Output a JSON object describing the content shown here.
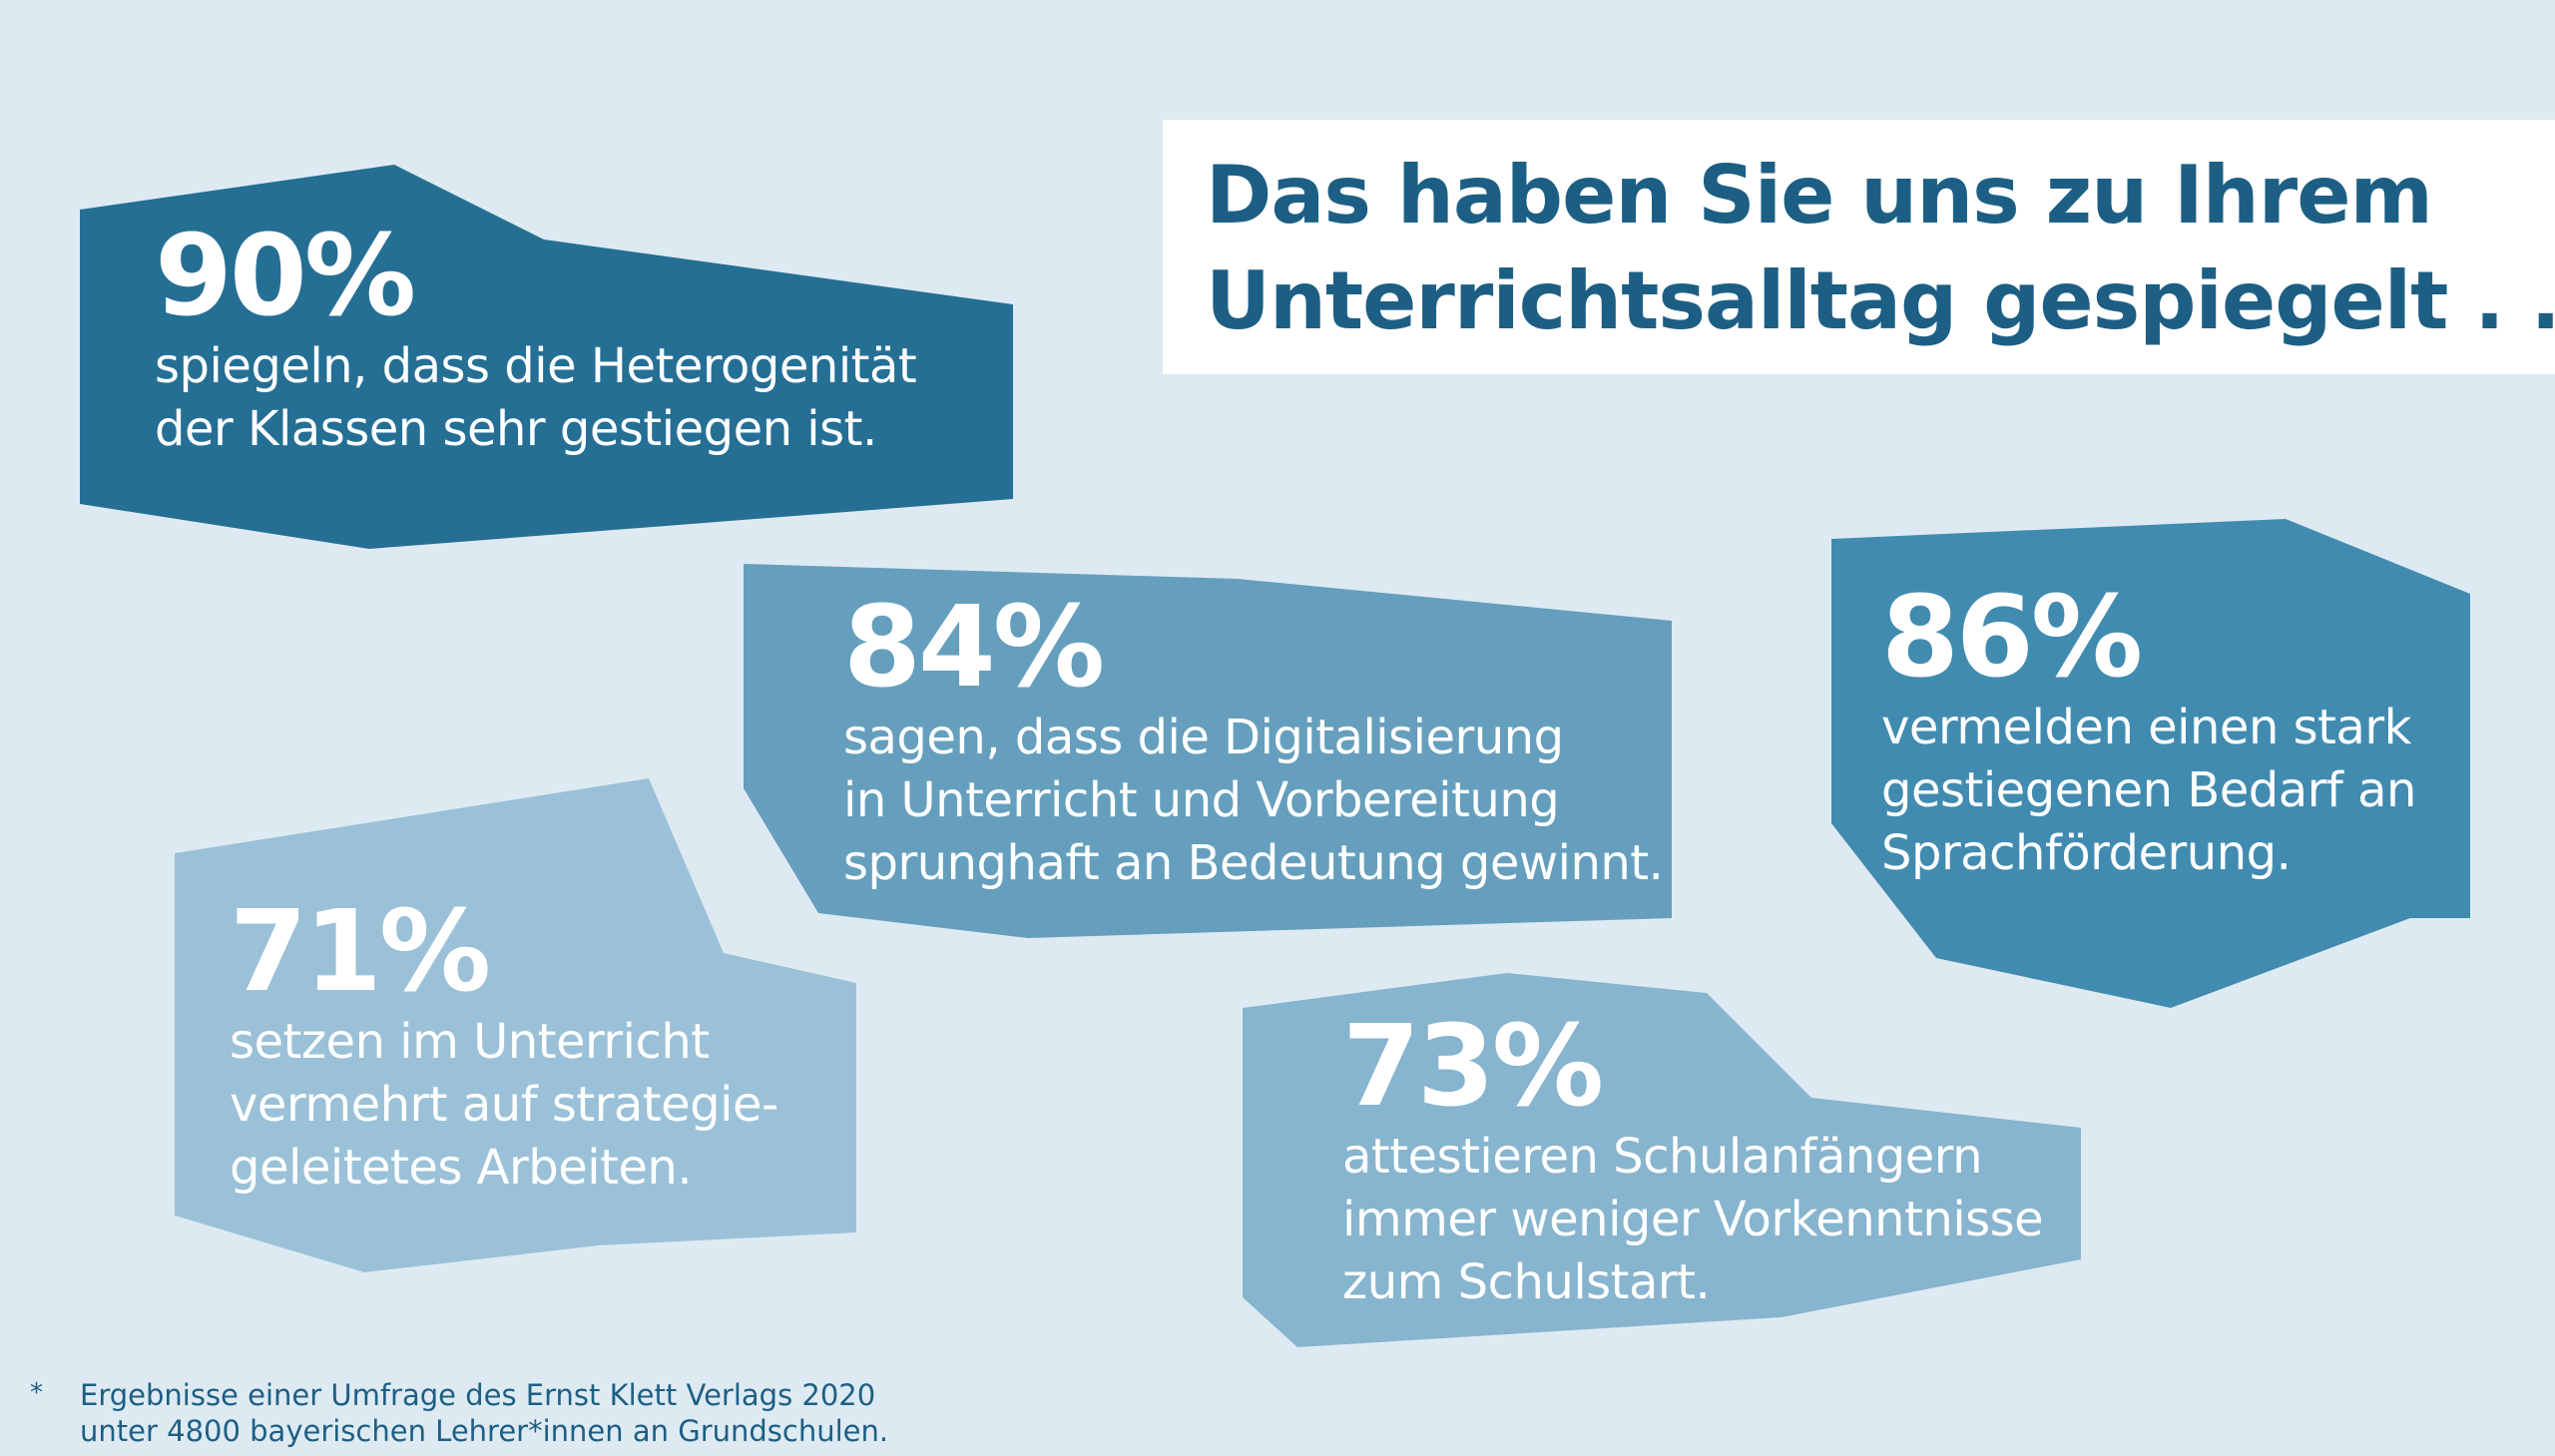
{
  "title": {
    "line1": "Das haben Sie uns zu Ihrem",
    "line2": "Unterrichtsalltag gespiegelt . . .",
    "footnote_mark": "*"
  },
  "stats": {
    "s90": {
      "percent": "90%",
      "lines": [
        "spiegeln, dass die Heterogenität",
        "der Klassen sehr gestiegen ist."
      ],
      "color": "#256f95"
    },
    "s84": {
      "percent": "84%",
      "lines": [
        "sagen, dass die Digitalisierung",
        "in Unterricht und Vorbereitung",
        "sprunghaft an Bedeutung gewinnt."
      ],
      "color": "#659fbd"
    },
    "s86": {
      "percent": "86%",
      "lines": [
        "vermelden einen stark",
        "gestiegenen Bedarf an",
        "Sprachförderung."
      ],
      "color": "#418bb0"
    },
    "s71": {
      "percent": "71%",
      "lines": [
        "setzen im Unterricht",
        "vermehrt auf strategie-",
        "geleitetes Arbeiten."
      ],
      "color": "#9ac1d7"
    },
    "s73": {
      "percent": "73%",
      "lines": [
        "attestieren Schulanfängern",
        "immer weniger Vorkenntnisse",
        "zum Schulstart."
      ],
      "color": "#87b4ce"
    }
  },
  "footnote": {
    "mark": "*",
    "line1": "Ergebnisse einer Umfrage des Ernst Klett Verlags 2020",
    "line2": "unter 4800 bayerischen Lehrer*innen an Grundschulen."
  },
  "colors": {
    "background": "#deeaf2",
    "title_text": "#1d5f84",
    "title_box": "#ffffff"
  }
}
